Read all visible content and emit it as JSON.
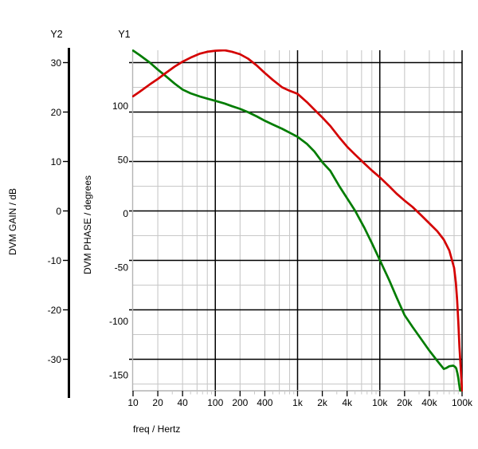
{
  "page": {
    "background": "#ffffff"
  },
  "colors": {
    "grid_major": "#000000",
    "grid_minor": "#c8c8c8",
    "axis_line": "#b4b4b4",
    "gain_curve": "#d40000",
    "phase_curve": "#007c00",
    "text": "#000000"
  },
  "chart_data": {
    "type": "line",
    "xlabel": "freq / Hertz",
    "grid": "on",
    "x": {
      "scale": "log",
      "min": 10,
      "max": 100000,
      "major_ticks": [
        {
          "value": 10,
          "label": "10"
        },
        {
          "value": 20,
          "label": "20"
        },
        {
          "value": 40,
          "label": "40"
        },
        {
          "value": 100,
          "label": "100"
        },
        {
          "value": 200,
          "label": "200"
        },
        {
          "value": 400,
          "label": "400"
        },
        {
          "value": 1000,
          "label": "1k"
        },
        {
          "value": 2000,
          "label": "2k"
        },
        {
          "value": 4000,
          "label": "4k"
        },
        {
          "value": 10000,
          "label": "10k"
        },
        {
          "value": 20000,
          "label": "20k"
        },
        {
          "value": 40000,
          "label": "40k"
        },
        {
          "value": 100000,
          "label": "100k"
        }
      ],
      "minor_gridline_multipliers": [
        2,
        4,
        6,
        8
      ],
      "minor_tick_multipliers": [
        3,
        5,
        6,
        7,
        8,
        9
      ]
    },
    "y1": {
      "tag": "Y1",
      "label": "DVM PHASE / degrees",
      "unit": "degrees",
      "ticks": [
        100,
        50,
        0,
        -50,
        -100,
        -150
      ],
      "range": [
        -164.8,
        151.5
      ]
    },
    "y2": {
      "tag": "Y2",
      "label": "DVM GAIN / dB",
      "unit": "dB",
      "ticks": [
        30,
        20,
        10,
        0,
        -10,
        -20,
        -30
      ],
      "range": [
        -36.4,
        32.5
      ],
      "minor_tick_offset": 5
    },
    "series": [
      {
        "name": "DVM GAIN",
        "axis": "y2",
        "unit": "dB",
        "color": "#d40000",
        "points": [
          [
            10,
            23.2
          ],
          [
            12,
            24.1
          ],
          [
            16,
            25.6
          ],
          [
            20,
            26.7
          ],
          [
            25,
            27.9
          ],
          [
            32,
            29.2
          ],
          [
            40,
            30.2
          ],
          [
            50,
            31.0
          ],
          [
            65,
            31.8
          ],
          [
            80,
            32.2
          ],
          [
            100,
            32.4
          ],
          [
            130,
            32.5
          ],
          [
            160,
            32.2
          ],
          [
            200,
            31.7
          ],
          [
            250,
            30.8
          ],
          [
            320,
            29.4
          ],
          [
            400,
            27.9
          ],
          [
            500,
            26.5
          ],
          [
            650,
            25.0
          ],
          [
            800,
            24.3
          ],
          [
            1000,
            23.7
          ],
          [
            1300,
            22.0
          ],
          [
            1600,
            20.5
          ],
          [
            2000,
            18.9
          ],
          [
            2500,
            17.2
          ],
          [
            3200,
            14.9
          ],
          [
            4000,
            13.0
          ],
          [
            5000,
            11.4
          ],
          [
            6500,
            9.6
          ],
          [
            8000,
            8.2
          ],
          [
            10000,
            6.8
          ],
          [
            13000,
            5.0
          ],
          [
            16000,
            3.5
          ],
          [
            20000,
            2.1
          ],
          [
            25000,
            0.8
          ],
          [
            32000,
            -0.9
          ],
          [
            40000,
            -2.5
          ],
          [
            50000,
            -4.1
          ],
          [
            60000,
            -5.8
          ],
          [
            70000,
            -8.0
          ],
          [
            80000,
            -11.5
          ],
          [
            84000,
            -14.5
          ],
          [
            87000,
            -18.0
          ],
          [
            90000,
            -22.5
          ],
          [
            93000,
            -27.5
          ],
          [
            96000,
            -31.5
          ],
          [
            98000,
            -34.0
          ],
          [
            100000,
            -36.3
          ]
        ]
      },
      {
        "name": "DVM PHASE",
        "axis": "y1",
        "unit": "degrees",
        "color": "#007c00",
        "points": [
          [
            10,
            151.2
          ],
          [
            12,
            147.0
          ],
          [
            16,
            140.0
          ],
          [
            20,
            133.5
          ],
          [
            25,
            127.5
          ],
          [
            32,
            120.5
          ],
          [
            40,
            115.0
          ],
          [
            50,
            111.5
          ],
          [
            65,
            108.5
          ],
          [
            80,
            106.5
          ],
          [
            100,
            104.5
          ],
          [
            130,
            102.0
          ],
          [
            160,
            99.5
          ],
          [
            200,
            97.0
          ],
          [
            250,
            94.0
          ],
          [
            320,
            90.0
          ],
          [
            400,
            86.0
          ],
          [
            500,
            82.5
          ],
          [
            650,
            78.5
          ],
          [
            800,
            75.0
          ],
          [
            1000,
            71.0
          ],
          [
            1300,
            64.5
          ],
          [
            1600,
            57.5
          ],
          [
            2000,
            47.5
          ],
          [
            2500,
            39.5
          ],
          [
            3200,
            25.5
          ],
          [
            4000,
            14.0
          ],
          [
            5000,
            2.5
          ],
          [
            6500,
            -13.5
          ],
          [
            8000,
            -27.5
          ],
          [
            10000,
            -43.5
          ],
          [
            13000,
            -62.0
          ],
          [
            16000,
            -78.0
          ],
          [
            20000,
            -94.5
          ],
          [
            25000,
            -105.5
          ],
          [
            32000,
            -117.0
          ],
          [
            40000,
            -127.5
          ],
          [
            50000,
            -137.0
          ],
          [
            60000,
            -144.5
          ],
          [
            65000,
            -143.5
          ],
          [
            70000,
            -142.0
          ],
          [
            78000,
            -141.5
          ],
          [
            82000,
            -142.5
          ],
          [
            85000,
            -144.0
          ],
          [
            88000,
            -149.0
          ],
          [
            90000,
            -153.0
          ],
          [
            92000,
            -158.5
          ],
          [
            94000,
            -163.0
          ],
          [
            95000,
            -164.8
          ]
        ]
      }
    ]
  }
}
